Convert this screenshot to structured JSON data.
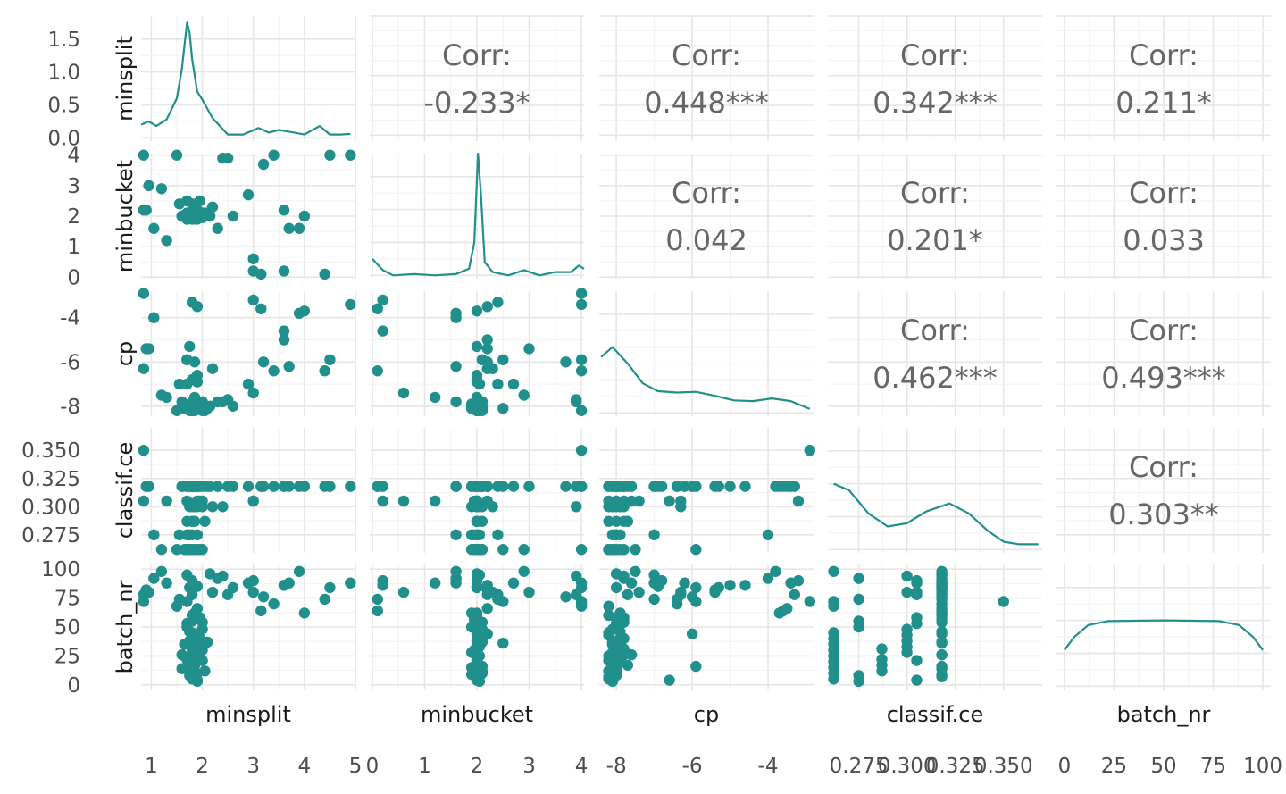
{
  "chart_data": {
    "type": "scatter",
    "variables": [
      "minsplit",
      "minbucket",
      "cp",
      "classif.ce",
      "batch_nr"
    ],
    "axis_ticks": {
      "minsplit": [
        1,
        2,
        3,
        4,
        5
      ],
      "minbucket": [
        0,
        1,
        2,
        3,
        4
      ],
      "cp": [
        -8,
        -6,
        -4
      ],
      "classif.ce": [
        0.275,
        0.3,
        0.325,
        0.35
      ],
      "batch_nr": [
        0,
        25,
        50,
        75,
        100
      ]
    },
    "axis_tick_labels": {
      "minsplit": [
        "1",
        "2",
        "3",
        "4",
        "5"
      ],
      "minbucket": [
        "0",
        "1",
        "2",
        "3",
        "4"
      ],
      "cp": [
        "-8",
        "-6",
        "-4"
      ],
      "classif.ce": [
        "0.275",
        "0.300",
        "0.325",
        "0.350"
      ],
      "batch_nr": [
        "0",
        "25",
        "50",
        "75",
        "100"
      ]
    },
    "density_y_ticks": [
      0.0,
      0.5,
      1.0,
      1.5
    ],
    "density_y_tick_labels": [
      "0.0",
      "0.5",
      "1.0",
      "1.5"
    ],
    "correlations": [
      {
        "row": 0,
        "col": 1,
        "label": "Corr:",
        "value": "-0.233*"
      },
      {
        "row": 0,
        "col": 2,
        "label": "Corr:",
        "value": "0.448***"
      },
      {
        "row": 0,
        "col": 3,
        "label": "Corr:",
        "value": "0.342***"
      },
      {
        "row": 0,
        "col": 4,
        "label": "Corr:",
        "value": "0.211*"
      },
      {
        "row": 1,
        "col": 2,
        "label": "Corr:",
        "value": "0.042"
      },
      {
        "row": 1,
        "col": 3,
        "label": "Corr:",
        "value": "0.201*"
      },
      {
        "row": 1,
        "col": 4,
        "label": "Corr:",
        "value": "0.033"
      },
      {
        "row": 2,
        "col": 3,
        "label": "Corr:",
        "value": "0.462***"
      },
      {
        "row": 2,
        "col": 4,
        "label": "Corr:",
        "value": "0.493***"
      },
      {
        "row": 3,
        "col": 4,
        "label": "Corr:",
        "value": "0.303**"
      }
    ],
    "density_curves": {
      "minsplit": [
        [
          0.8,
          0.2
        ],
        [
          0.95,
          0.25
        ],
        [
          1.1,
          0.18
        ],
        [
          1.3,
          0.28
        ],
        [
          1.5,
          0.6
        ],
        [
          1.6,
          1.05
        ],
        [
          1.7,
          1.75
        ],
        [
          1.75,
          1.6
        ],
        [
          1.8,
          1.2
        ],
        [
          1.9,
          0.7
        ],
        [
          2.0,
          0.58
        ],
        [
          2.2,
          0.3
        ],
        [
          2.5,
          0.05
        ],
        [
          2.8,
          0.05
        ],
        [
          3.1,
          0.15
        ],
        [
          3.3,
          0.08
        ],
        [
          3.5,
          0.12
        ],
        [
          3.8,
          0.08
        ],
        [
          4.0,
          0.05
        ],
        [
          4.3,
          0.18
        ],
        [
          4.5,
          0.05
        ],
        [
          4.7,
          0.05
        ],
        [
          4.9,
          0.06
        ]
      ],
      "minbucket": [
        [
          0,
          0.25
        ],
        [
          0.2,
          0.08
        ],
        [
          0.4,
          0.0
        ],
        [
          0.8,
          0.02
        ],
        [
          1.2,
          0.0
        ],
        [
          1.6,
          0.02
        ],
        [
          1.85,
          0.1
        ],
        [
          1.95,
          0.5
        ],
        [
          2.02,
          1.85
        ],
        [
          2.08,
          1.2
        ],
        [
          2.15,
          0.2
        ],
        [
          2.3,
          0.05
        ],
        [
          2.6,
          0.0
        ],
        [
          2.9,
          0.08
        ],
        [
          3.2,
          0.0
        ],
        [
          3.5,
          0.05
        ],
        [
          3.8,
          0.05
        ],
        [
          3.95,
          0.15
        ],
        [
          4.05,
          0.1
        ]
      ],
      "cp": [
        [
          -8.4,
          0.85
        ],
        [
          -8.1,
          1.0
        ],
        [
          -7.7,
          0.75
        ],
        [
          -7.3,
          0.45
        ],
        [
          -6.9,
          0.33
        ],
        [
          -6.4,
          0.31
        ],
        [
          -5.9,
          0.32
        ],
        [
          -5.4,
          0.26
        ],
        [
          -4.9,
          0.19
        ],
        [
          -4.4,
          0.18
        ],
        [
          -3.9,
          0.22
        ],
        [
          -3.4,
          0.18
        ],
        [
          -2.9,
          0.06
        ]
      ],
      "classif.ce": [
        [
          0.262,
          1.0
        ],
        [
          0.27,
          0.9
        ],
        [
          0.28,
          0.55
        ],
        [
          0.29,
          0.35
        ],
        [
          0.3,
          0.4
        ],
        [
          0.31,
          0.58
        ],
        [
          0.322,
          0.7
        ],
        [
          0.332,
          0.55
        ],
        [
          0.342,
          0.28
        ],
        [
          0.35,
          0.12
        ],
        [
          0.358,
          0.08
        ],
        [
          0.368,
          0.08
        ]
      ],
      "batch_nr": [
        [
          0,
          0.55
        ],
        [
          5,
          0.75
        ],
        [
          12,
          0.93
        ],
        [
          22,
          0.99
        ],
        [
          50,
          1.0
        ],
        [
          78,
          0.99
        ],
        [
          88,
          0.93
        ],
        [
          95,
          0.75
        ],
        [
          100,
          0.55
        ]
      ]
    },
    "points": {
      "minsplit": [
        1.8,
        1.9,
        1.7,
        1.85,
        1.75,
        2.0,
        1.65,
        1.95,
        1.8,
        1.7,
        1.8,
        1.9,
        1.75,
        2.05,
        1.85,
        1.7,
        1.9,
        1.8,
        1.75,
        1.85,
        2.0,
        1.7,
        1.95,
        1.8,
        1.6,
        1.85,
        2.1,
        1.75,
        1.9,
        1.8,
        1.8,
        1.7,
        1.9,
        0.85,
        0.95,
        0.9,
        1.05,
        0.85,
        1.3,
        1.55,
        1.5,
        2.15,
        2.3,
        2.5,
        2.6,
        2.9,
        3.0,
        3.2,
        3.4,
        3.6,
        3.7,
        3.9,
        4.0,
        4.4,
        4.5,
        4.9,
        3.0,
        3.15,
        3.6,
        1.2,
        1.7,
        2.2,
        2.4,
        1.9,
        1.8,
        1.75,
        1.85,
        2.0,
        1.85,
        1.95,
        1.6,
        1.7,
        1.8,
        1.9,
        2.0,
        1.8
      ],
      "minbucket": [
        2.0,
        2.1,
        1.9,
        2.0,
        2.05,
        1.95,
        2.0,
        2.1,
        2.0,
        1.9,
        2.0,
        2.05,
        1.95,
        2.1,
        2.0,
        2.0,
        1.9,
        2.05,
        2.0,
        2.0,
        2.1,
        1.95,
        2.0,
        2.05,
        2.0,
        2.0,
        2.1,
        2.0,
        1.95,
        2.0,
        2.0,
        2.05,
        2.0,
        4.0,
        3.0,
        2.2,
        1.6,
        2.2,
        1.2,
        2.4,
        4.0,
        2.0,
        1.6,
        3.9,
        2.0,
        2.7,
        0.6,
        3.7,
        4.0,
        2.2,
        1.6,
        1.6,
        2.0,
        0.1,
        4.0,
        4.0,
        0.2,
        0.1,
        0.2,
        2.9,
        2.5,
        2.3,
        3.9,
        2.2,
        2.4,
        2.0,
        1.9,
        2.1,
        2.2,
        2.5,
        2.0,
        2.1,
        1.9,
        2.0,
        2.0,
        2.0
      ],
      "cp": [
        -8.2,
        -8.0,
        -8.1,
        -7.9,
        -8.2,
        -8.0,
        -8.1,
        -7.8,
        -8.2,
        -8.0,
        -7.9,
        -8.1,
        -8.0,
        -8.2,
        -7.7,
        -8.0,
        -8.1,
        -7.9,
        -8.0,
        -8.2,
        -8.1,
        -8.0,
        -7.8,
        -8.2,
        -8.0,
        -7.6,
        -8.1,
        -7.9,
        -8.0,
        -8.2,
        -6.8,
        -7.0,
        -6.9,
        -2.9,
        -5.4,
        -5.4,
        -4.0,
        -6.3,
        -7.6,
        -7.0,
        -8.2,
        -8.0,
        -7.8,
        -7.7,
        -8.0,
        -7.0,
        -7.4,
        -6.0,
        -6.4,
        -5.0,
        -6.2,
        -3.8,
        -3.7,
        -6.4,
        -5.9,
        -3.4,
        -3.2,
        -3.6,
        -4.6,
        -7.5,
        -5.9,
        -6.3,
        -7.8,
        -3.5,
        -3.3,
        -5.3,
        -7.9,
        -7.8,
        -6.0,
        -8.1,
        -7.8,
        -5.9,
        -8.0,
        -6.6,
        -8.2,
        -7.8
      ],
      "classif.ce": [
        0.262,
        0.262,
        0.262,
        0.262,
        0.262,
        0.262,
        0.262,
        0.262,
        0.262,
        0.275,
        0.275,
        0.275,
        0.275,
        0.287,
        0.287,
        0.287,
        0.3,
        0.3,
        0.3,
        0.3,
        0.3,
        0.305,
        0.305,
        0.318,
        0.318,
        0.318,
        0.318,
        0.318,
        0.318,
        0.318,
        0.318,
        0.318,
        0.318,
        0.35,
        0.318,
        0.318,
        0.275,
        0.305,
        0.305,
        0.275,
        0.262,
        0.318,
        0.318,
        0.318,
        0.318,
        0.318,
        0.305,
        0.318,
        0.318,
        0.318,
        0.318,
        0.318,
        0.318,
        0.318,
        0.318,
        0.318,
        0.305,
        0.318,
        0.318,
        0.262,
        0.262,
        0.3,
        0.3,
        0.318,
        0.318,
        0.318,
        0.318,
        0.318,
        0.318,
        0.318,
        0.318,
        0.318,
        0.318,
        0.305,
        0.305,
        0.287
      ],
      "batch_nr": [
        5,
        10,
        15,
        20,
        25,
        30,
        35,
        40,
        45,
        50,
        55,
        3,
        8,
        12,
        17,
        22,
        28,
        33,
        38,
        43,
        48,
        53,
        58,
        7,
        14,
        26,
        37,
        46,
        57,
        60,
        90,
        95,
        85,
        72,
        80,
        82,
        92,
        78,
        88,
        74,
        68,
        96,
        92,
        78,
        84,
        88,
        80,
        76,
        70,
        86,
        88,
        98,
        62,
        74,
        84,
        88,
        90,
        64,
        86,
        98,
        72,
        80,
        94,
        66,
        78,
        84,
        62,
        54,
        44,
        36,
        26,
        16,
        9,
        4,
        21,
        31
      ]
    }
  }
}
